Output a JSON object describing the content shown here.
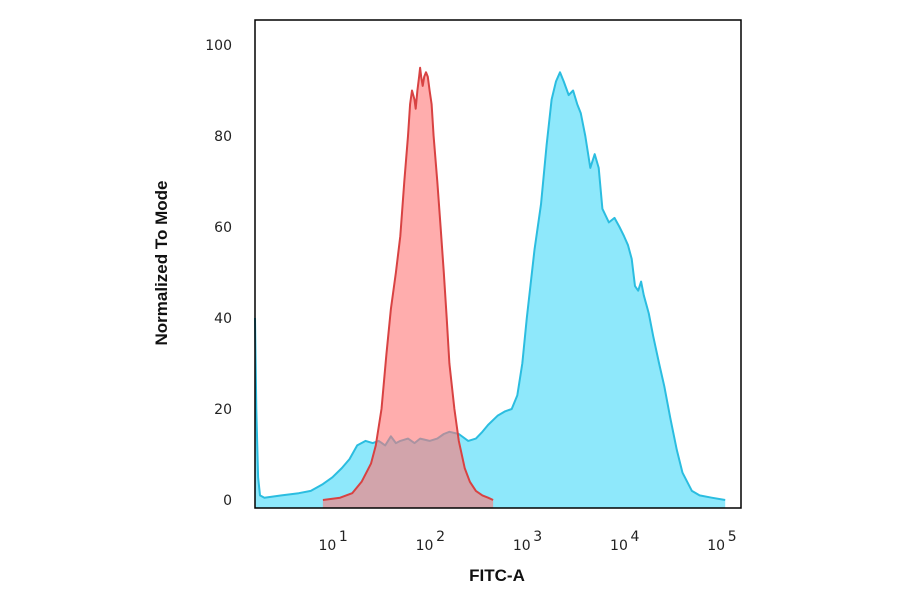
{
  "chart_data": {
    "type": "area",
    "xlabel": "FITC-A",
    "ylabel": "Normalized To Mode",
    "x_scale": "log",
    "xlim": [
      1.6,
      160000
    ],
    "ylim": [
      0,
      100
    ],
    "y_ticks": [
      0,
      20,
      40,
      60,
      80,
      100
    ],
    "x_ticks": [
      {
        "value": 10,
        "base": "10",
        "exp": "1"
      },
      {
        "value": 100,
        "base": "10",
        "exp": "2"
      },
      {
        "value": 1000,
        "base": "10",
        "exp": "3"
      },
      {
        "value": 10000,
        "base": "10",
        "exp": "4"
      },
      {
        "value": 100000,
        "base": "10",
        "exp": "5"
      }
    ],
    "grid": false,
    "series": [
      {
        "fill": "#8ee8fb",
        "stroke": "#2bbde0",
        "points": [
          [
            1.6,
            40
          ],
          [
            1.65,
            20
          ],
          [
            1.72,
            5
          ],
          [
            1.8,
            1
          ],
          [
            2,
            0.5
          ],
          [
            3,
            1
          ],
          [
            4.5,
            1.5
          ],
          [
            6,
            2
          ],
          [
            8,
            3.5
          ],
          [
            10,
            5
          ],
          [
            12.5,
            7
          ],
          [
            15,
            9
          ],
          [
            18,
            12
          ],
          [
            22,
            13
          ],
          [
            26,
            12.5
          ],
          [
            30,
            13
          ],
          [
            35,
            12
          ],
          [
            40,
            14
          ],
          [
            45,
            12.5
          ],
          [
            50,
            13
          ],
          [
            60,
            13.5
          ],
          [
            70,
            12.5
          ],
          [
            80,
            13.5
          ],
          [
            100,
            13
          ],
          [
            120,
            13.5
          ],
          [
            140,
            14.5
          ],
          [
            160,
            15
          ],
          [
            200,
            14.5
          ],
          [
            250,
            13
          ],
          [
            300,
            13.5
          ],
          [
            350,
            15
          ],
          [
            400,
            16.5
          ],
          [
            500,
            18.5
          ],
          [
            600,
            19.5
          ],
          [
            700,
            20
          ],
          [
            800,
            23
          ],
          [
            900,
            30
          ],
          [
            1000,
            40
          ],
          [
            1200,
            55
          ],
          [
            1400,
            65
          ],
          [
            1600,
            78
          ],
          [
            1800,
            88
          ],
          [
            2000,
            92
          ],
          [
            2200,
            94
          ],
          [
            2400,
            92
          ],
          [
            2700,
            89
          ],
          [
            3000,
            90
          ],
          [
            3300,
            87
          ],
          [
            3600,
            85
          ],
          [
            4000,
            80
          ],
          [
            4500,
            73
          ],
          [
            5000,
            76
          ],
          [
            5500,
            73
          ],
          [
            6000,
            64
          ],
          [
            7000,
            61
          ],
          [
            8000,
            62
          ],
          [
            9000,
            60
          ],
          [
            10000,
            58
          ],
          [
            11000,
            56
          ],
          [
            12000,
            53
          ],
          [
            13000,
            47
          ],
          [
            14000,
            46
          ],
          [
            15000,
            48
          ],
          [
            16000,
            45
          ],
          [
            18000,
            41
          ],
          [
            20000,
            36
          ],
          [
            23000,
            30
          ],
          [
            26000,
            25
          ],
          [
            30000,
            18
          ],
          [
            35000,
            11
          ],
          [
            40000,
            6
          ],
          [
            50000,
            2
          ],
          [
            60000,
            1
          ],
          [
            80000,
            0.5
          ],
          [
            110000,
            0
          ]
        ]
      },
      {
        "fill": "rgba(255, 118, 118, 0.6)",
        "stroke": "#d84242",
        "points": [
          [
            8,
            0
          ],
          [
            12,
            0.5
          ],
          [
            16,
            1.5
          ],
          [
            20,
            4
          ],
          [
            25,
            8
          ],
          [
            28,
            12
          ],
          [
            32,
            20
          ],
          [
            36,
            32
          ],
          [
            40,
            42
          ],
          [
            45,
            50
          ],
          [
            50,
            58
          ],
          [
            55,
            70
          ],
          [
            60,
            80
          ],
          [
            63,
            87
          ],
          [
            66,
            90
          ],
          [
            70,
            88
          ],
          [
            72,
            86
          ],
          [
            75,
            90
          ],
          [
            78,
            93
          ],
          [
            80,
            95
          ],
          [
            82,
            93
          ],
          [
            85,
            91
          ],
          [
            88,
            93
          ],
          [
            92,
            94
          ],
          [
            96,
            93
          ],
          [
            100,
            90
          ],
          [
            105,
            87
          ],
          [
            110,
            80
          ],
          [
            120,
            70
          ],
          [
            130,
            60
          ],
          [
            140,
            50
          ],
          [
            150,
            40
          ],
          [
            160,
            30
          ],
          [
            180,
            20
          ],
          [
            200,
            13
          ],
          [
            230,
            7
          ],
          [
            260,
            4
          ],
          [
            300,
            2
          ],
          [
            350,
            1
          ],
          [
            400,
            0.5
          ],
          [
            450,
            0
          ]
        ]
      }
    ]
  }
}
